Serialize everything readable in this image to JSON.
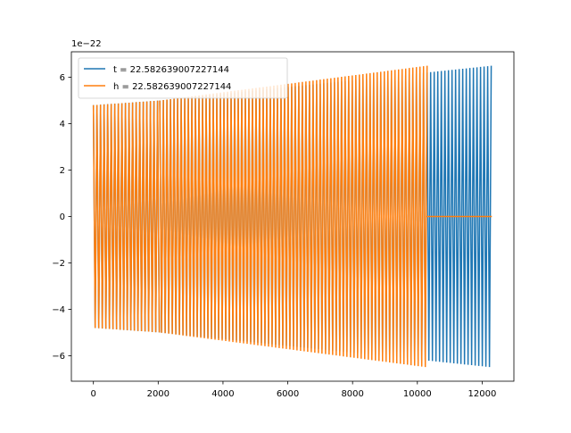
{
  "chart_data": {
    "type": "line",
    "title": "",
    "xlabel": "",
    "ylabel": "",
    "xlim": [
      -680,
      12980
    ],
    "ylim": [
      -7.1e-22,
      7.1e-22
    ],
    "y_offset_label": "1e−22",
    "xticks": [
      0,
      2000,
      4000,
      6000,
      8000,
      10000,
      12000
    ],
    "xtick_labels": [
      "0",
      "2000",
      "4000",
      "6000",
      "8000",
      "10000",
      "12000"
    ],
    "yticks": [
      -6e-22,
      -4e-22,
      -2e-22,
      0,
      2e-22,
      4e-22,
      6e-22
    ],
    "ytick_labels": [
      "−6",
      "−4",
      "−2",
      "0",
      "2",
      "4",
      "6"
    ],
    "grid": false,
    "legend_position": "upper-left",
    "series": [
      {
        "name": "t = 22.582639007227144",
        "color": "#1f77b4",
        "x_start": 0,
        "x_end": 12300,
        "amplitude_start": 4.8e-22,
        "amplitude_end": 6.5e-22,
        "segments": [
          {
            "x_from": 0,
            "x_to": 2050,
            "amplitude_from": 4.8e-22,
            "amplitude_to": 5e-22
          },
          {
            "x_from": 2050,
            "x_to": 12300,
            "amplitude_from": 5e-22,
            "amplitude_to": 6.5e-22
          }
        ]
      },
      {
        "name": "h = 22.582639007227144",
        "color": "#ff7f0e",
        "x_start": 0,
        "x_end": 12300,
        "amplitude_start": 4.8e-22,
        "amplitude_end": 6.5e-22,
        "segments": [
          {
            "x_from": 0,
            "x_to": 2050,
            "amplitude_from": 4.8e-22,
            "amplitude_to": 5e-22
          },
          {
            "x_from": 2050,
            "x_to": 10300,
            "amplitude_from": 5e-22,
            "amplitude_to": 6.5e-22
          },
          {
            "x_from": 10300,
            "x_to": 12300,
            "amplitude_from": 0,
            "amplitude_to": 0
          }
        ]
      }
    ]
  }
}
